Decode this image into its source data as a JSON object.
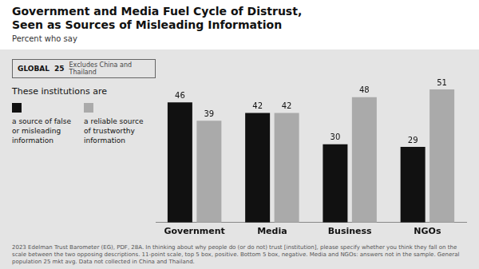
{
  "chart_data": {
    "type": "bar",
    "title": [
      "Government and Media Fuel Cycle of Distrust,",
      "Seen as Sources of Misleading Information"
    ],
    "subtitle": "Percent who say",
    "categories": [
      "Government",
      "Media",
      "Business",
      "NGOs"
    ],
    "series": [
      {
        "name": "a source of false or misleading information",
        "color": "#111111",
        "values": [
          46,
          42,
          30,
          29
        ]
      },
      {
        "name": "a reliable source of trustworthy information",
        "color": "#aaaaaa",
        "values": [
          39,
          42,
          48,
          51
        ]
      }
    ],
    "ylim": [
      0,
      62
    ],
    "tick_labels": "x",
    "grid": false,
    "data_labels": true,
    "legend": "left",
    "annotations": [
      "GLOBAL",
      "25",
      "Excludes China and Thailand",
      "These institutions are",
      "2023 Edelman Trust Barometer (EG), PDF, 28A. In thinking about why people do (or do not) trust [institution], please specify whether you think they fall on the scale between the two opposing descriptions. 11-point scale, top 5 box, positive. Bottom 5 box, negative. Media and NGOs: answers not in the sample. General population 25 mkt avg. Data not collected in China and Thailand."
    ]
  }
}
